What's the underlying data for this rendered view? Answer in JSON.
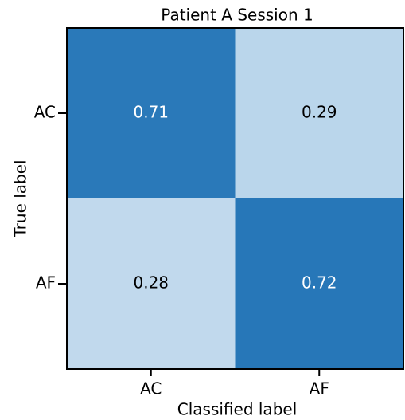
{
  "chart_data": {
    "type": "heatmap",
    "title": "Patient A Session 1",
    "x_label": "Classified label",
    "y_label": "True label",
    "x_categories": [
      "AC",
      "AF"
    ],
    "y_categories": [
      "AC",
      "AF"
    ],
    "values": [
      [
        0.71,
        0.29
      ],
      [
        0.28,
        0.72
      ]
    ],
    "cell_colors": [
      [
        "#2a79b9",
        "#bad6eb"
      ],
      [
        "#c1d9ed",
        "#2777b8"
      ]
    ]
  }
}
